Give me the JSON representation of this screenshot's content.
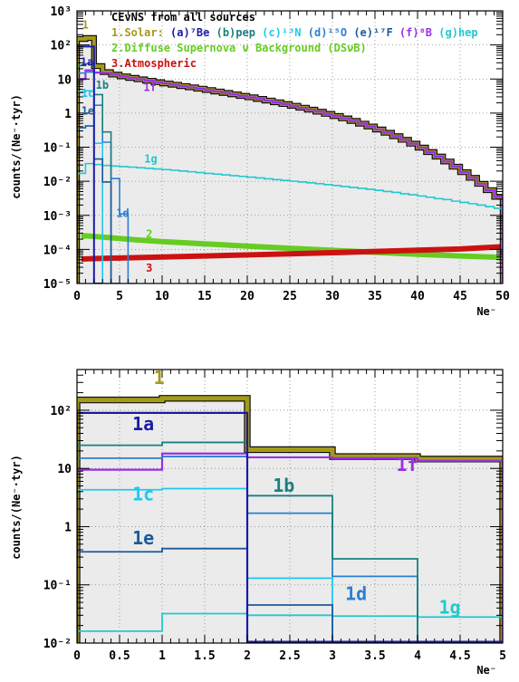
{
  "colors": {
    "total": "#a39a1a",
    "dsnb": "#66cc22",
    "atm": "#cc1111",
    "1a": "#1a1aa6",
    "1b": "#1a8080",
    "1c": "#1ec8f0",
    "1d": "#2a7fd0",
    "1e": "#1a5a9a",
    "1f": "#9a30e0",
    "1g": "#22c8d0",
    "frame_fill": "#ebebeb"
  },
  "chart_data": [
    {
      "type": "line",
      "step_histogram": true,
      "title": "CEνNS from all sources",
      "xlabel": "Ne⁻",
      "ylabel": "counts/(Ne⁻·tyr)",
      "xlim": [
        0,
        50
      ],
      "ylim": [
        1e-05,
        1000
      ],
      "yscale": "log",
      "grid": true,
      "legend_position": "top-left",
      "legend": {
        "title": "CEvNS from all sources",
        "line1_prefix": "1.Solar:",
        "line1_items": [
          "(a)⁷Be",
          "(b)pep",
          "(c)¹³N",
          "(d)¹⁵O",
          "(e)¹⁷F",
          "(f)⁸B",
          "(g)hep"
        ],
        "line2": "2.Diffuse Supernova ν Background (DSνB)",
        "line3": "3.Atmospheric"
      },
      "xticks": [
        "0",
        "5",
        "10",
        "15",
        "20",
        "25",
        "30",
        "35",
        "40",
        "45",
        "50"
      ],
      "yticks": [
        "10⁻⁵",
        "10⁻⁴",
        "10⁻³",
        "10⁻²",
        "10⁻¹",
        "1",
        "10",
        "10²",
        "10³"
      ],
      "curve_labels": [
        {
          "text": "1",
          "series": "total",
          "x": 0.6,
          "y": 300
        },
        {
          "text": "1a",
          "series": "1a",
          "x": 0.4,
          "y": 25
        },
        {
          "text": "1c",
          "series": "1c",
          "x": 0.5,
          "y": 3
        },
        {
          "text": "1b",
          "series": "1b",
          "x": 2.2,
          "y": 5.2
        },
        {
          "text": "1e",
          "series": "1e",
          "x": 0.5,
          "y": 0.9
        },
        {
          "text": "1f",
          "series": "1f",
          "x": 7.8,
          "y": 4.5
        },
        {
          "text": "1g",
          "series": "1g",
          "x": 7.9,
          "y": 0.035
        },
        {
          "text": "1d",
          "series": "1d",
          "x": 4.6,
          "y": 0.0009
        },
        {
          "text": "2",
          "series": "dsnb",
          "x": 8.1,
          "y": 0.00022
        },
        {
          "text": "3",
          "series": "atm",
          "x": 8.1,
          "y": 2.2e-05
        }
      ],
      "series": [
        {
          "id": "total",
          "name": "1",
          "shape": "step",
          "width": 4,
          "start": 0,
          "step": 1,
          "values": [
            150,
            160,
            24,
            16,
            13.5,
            12,
            10.8,
            9.8,
            8.9,
            8.1,
            7.4,
            6.8,
            6.2,
            5.7,
            5.2,
            4.75,
            4.3,
            3.9,
            3.55,
            3.2,
            2.9,
            2.6,
            2.33,
            2.08,
            1.85,
            1.64,
            1.44,
            1.26,
            1.1,
            0.95,
            0.82,
            0.7,
            0.59,
            0.49,
            0.405,
            0.33,
            0.265,
            0.21,
            0.165,
            0.127,
            0.097,
            0.072,
            0.053,
            0.038,
            0.0267,
            0.0185,
            0.0126,
            0.0084,
            0.0055,
            0.0035
          ]
        },
        {
          "id": "1f",
          "name": "1f",
          "shape": "step",
          "width": 2.2,
          "start": 0,
          "step": 1,
          "values": [
            10,
            18,
            15.5,
            15,
            13.5,
            12,
            10.8,
            9.8,
            8.9,
            8.1,
            7.4,
            6.8,
            6.2,
            5.7,
            5.2,
            4.75,
            4.3,
            3.9,
            3.55,
            3.2,
            2.9,
            2.6,
            2.33,
            2.08,
            1.85,
            1.64,
            1.44,
            1.26,
            1.1,
            0.95,
            0.82,
            0.7,
            0.59,
            0.49,
            0.405,
            0.33,
            0.265,
            0.21,
            0.165,
            0.127,
            0.097,
            0.072,
            0.053,
            0.038,
            0.0267,
            0.0185,
            0.0126,
            0.0084,
            0.0055,
            0.0035
          ]
        },
        {
          "id": "1g",
          "name": "1g",
          "shape": "step",
          "width": 1.6,
          "start": 0,
          "step": 1,
          "values": [
            0.017,
            0.033,
            0.031,
            0.029,
            0.028,
            0.027,
            0.026,
            0.025,
            0.024,
            0.023,
            0.022,
            0.021,
            0.02,
            0.019,
            0.018,
            0.017,
            0.0162,
            0.0154,
            0.0146,
            0.0139,
            0.0132,
            0.0125,
            0.0118,
            0.0112,
            0.0106,
            0.01,
            0.0095,
            0.009,
            0.0085,
            0.008,
            0.0075,
            0.007,
            0.0066,
            0.0062,
            0.0058,
            0.0054,
            0.005,
            0.0047,
            0.0043,
            0.004,
            0.0037,
            0.0034,
            0.0031,
            0.0029,
            0.0026,
            0.0024,
            0.0022,
            0.002,
            0.0018,
            0.0016
          ]
        },
        {
          "id": "1a",
          "name": "1a",
          "shape": "step",
          "width": 2,
          "start": 0,
          "step": 1,
          "values": [
            90,
            90,
            1e-05
          ]
        },
        {
          "id": "1b",
          "name": "1b",
          "shape": "step",
          "width": 1.6,
          "start": 0,
          "step": 1,
          "values": [
            25,
            28,
            3.5,
            0.28,
            1e-05
          ]
        },
        {
          "id": "1c",
          "name": "1c",
          "shape": "step",
          "width": 1.6,
          "start": 0,
          "step": 1,
          "values": [
            4.2,
            4.5,
            0.13,
            1e-05
          ]
        },
        {
          "id": "1d",
          "name": "1d",
          "shape": "step",
          "width": 1.6,
          "start": 0,
          "step": 1,
          "values": [
            15,
            16,
            1.7,
            0.14,
            0.012,
            0.0011,
            1e-05
          ]
        },
        {
          "id": "1e",
          "name": "1e",
          "shape": "step",
          "width": 1.6,
          "start": 0,
          "step": 1,
          "values": [
            0.37,
            0.42,
            0.045,
            0.0095,
            1e-05
          ]
        },
        {
          "id": "dsnb",
          "name": "2",
          "shape": "band",
          "width": 6,
          "x": [
            0.5,
            1,
            2,
            4,
            7,
            10,
            15,
            20,
            25,
            30,
            35,
            40,
            45,
            50
          ],
          "values": [
            0.00024,
            0.00025,
            0.00024,
            0.00022,
            0.00019,
            0.00017,
            0.000145,
            0.000125,
            0.000108,
            9.4e-05,
            8.2e-05,
            7.2e-05,
            6.4e-05,
            5.8e-05
          ]
        },
        {
          "id": "atm",
          "name": "3",
          "shape": "band",
          "width": 6,
          "x": [
            0.5,
            2,
            5,
            10,
            15,
            20,
            25,
            30,
            35,
            40,
            45,
            50
          ],
          "values": [
            5.2e-05,
            5.4e-05,
            5.6e-05,
            6e-05,
            6.4e-05,
            6.9e-05,
            7.4e-05,
            8e-05,
            8.7e-05,
            9.5e-05,
            0.000103,
            0.00012
          ]
        }
      ]
    },
    {
      "type": "line",
      "step_histogram": true,
      "title": "",
      "xlabel": "Ne⁻",
      "ylabel": "counts/(Ne⁻·tyr)",
      "xlim": [
        0,
        5
      ],
      "ylim": [
        0.01,
        500
      ],
      "yscale": "log",
      "grid": true,
      "xticks": [
        "0",
        "0.5",
        "1",
        "1.5",
        "2",
        "2.5",
        "3",
        "3.5",
        "4",
        "4.5",
        "5"
      ],
      "yticks": [
        "10⁻²",
        "10⁻¹",
        "1",
        "10",
        "10²"
      ],
      "curve_labels": [
        {
          "text": "1",
          "series": "total",
          "x": 0.9,
          "y": 280
        },
        {
          "text": "1a",
          "series": "1a",
          "x": 0.65,
          "y": 45
        },
        {
          "text": "1f",
          "series": "1f",
          "x": 3.75,
          "y": 9
        },
        {
          "text": "1b",
          "series": "1b",
          "x": 2.3,
          "y": 4
        },
        {
          "text": "1c",
          "series": "1c",
          "x": 0.65,
          "y": 2.8
        },
        {
          "text": "1e",
          "series": "1e",
          "x": 0.65,
          "y": 0.5
        },
        {
          "text": "1d",
          "series": "1d",
          "x": 3.15,
          "y": 0.055
        },
        {
          "text": "1g",
          "series": "1g",
          "x": 4.25,
          "y": 0.032
        }
      ],
      "series": [
        {
          "id": "total",
          "name": "1",
          "shape": "step",
          "width": 5,
          "start": 0,
          "step": 1,
          "values": [
            150,
            160,
            21,
            16,
            14.5
          ]
        },
        {
          "id": "1a",
          "name": "1a",
          "shape": "step",
          "width": 2.2,
          "start": 0,
          "step": 1,
          "values": [
            90,
            90,
            0.0105,
            0.0105,
            0.0105
          ]
        },
        {
          "id": "1b",
          "name": "1b",
          "shape": "step",
          "width": 1.8,
          "start": 0,
          "step": 1,
          "values": [
            25,
            28,
            3.4,
            0.28,
            0.0105
          ]
        },
        {
          "id": "1c",
          "name": "1c",
          "shape": "step",
          "width": 1.8,
          "start": 0,
          "step": 1,
          "values": [
            4.3,
            4.5,
            0.13,
            0.0105,
            0.0105
          ]
        },
        {
          "id": "1d",
          "name": "1d",
          "shape": "step",
          "width": 1.8,
          "start": 0,
          "step": 1,
          "values": [
            15,
            16,
            1.7,
            0.14,
            0.0105
          ]
        },
        {
          "id": "1e",
          "name": "1e",
          "shape": "step",
          "width": 1.8,
          "start": 0,
          "step": 1,
          "values": [
            0.37,
            0.42,
            0.045,
            0.0095,
            0.0105
          ]
        },
        {
          "id": "1f",
          "name": "1f",
          "shape": "step",
          "width": 2.2,
          "start": 0,
          "step": 1,
          "values": [
            9.5,
            18,
            15.5,
            15,
            13.5
          ]
        },
        {
          "id": "1g",
          "name": "1g",
          "shape": "step",
          "width": 1.8,
          "start": 0,
          "step": 1,
          "values": [
            0.016,
            0.032,
            0.03,
            0.029,
            0.028
          ]
        }
      ]
    }
  ]
}
